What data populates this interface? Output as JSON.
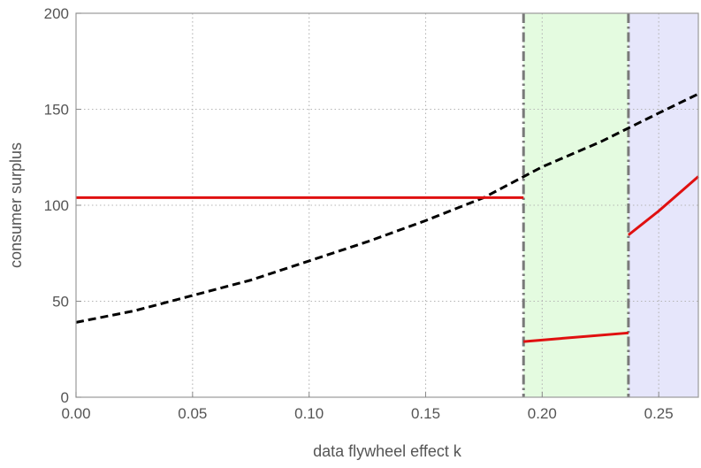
{
  "chart_data": {
    "type": "line",
    "title": "",
    "xlabel": "data flywheel effect k",
    "ylabel": "consumer surplus",
    "xlim": [
      0,
      0.267
    ],
    "ylim": [
      0,
      200
    ],
    "xticks": [
      0.0,
      0.05,
      0.1,
      0.15,
      0.2,
      0.25
    ],
    "xtick_labels": [
      "0.00",
      "0.05",
      "0.10",
      "0.15",
      "0.20",
      "0.25"
    ],
    "yticks": [
      0,
      50,
      100,
      150,
      200
    ],
    "ytick_labels": [
      "0",
      "50",
      "100",
      "150",
      "200"
    ],
    "grid": true,
    "legend": "none",
    "regions": [
      {
        "x_start": 0.192,
        "x_end": 0.237,
        "color": "#e4fbe0"
      },
      {
        "x_start": 0.237,
        "x_end": 0.267,
        "color": "#e6e6fb"
      }
    ],
    "vertical_lines": [
      0.192,
      0.237
    ],
    "series": [
      {
        "style": "dashed",
        "color": "#000000",
        "x": [
          0.0,
          0.025,
          0.05,
          0.075,
          0.1,
          0.125,
          0.15,
          0.175,
          0.2,
          0.225,
          0.25,
          0.267
        ],
        "y": [
          39,
          45,
          53,
          61,
          71,
          81,
          92,
          104,
          120,
          133,
          148,
          158
        ]
      },
      {
        "style": "solid",
        "color": "#e01010",
        "x": [
          0.0,
          0.192
        ],
        "y": [
          104,
          104
        ]
      },
      {
        "style": "solid",
        "color": "#e01010",
        "x": [
          0.192,
          0.237
        ],
        "y": [
          29,
          33.5
        ]
      },
      {
        "style": "solid",
        "color": "#e01010",
        "x": [
          0.237,
          0.25,
          0.267
        ],
        "y": [
          84.5,
          97,
          115
        ]
      }
    ]
  }
}
